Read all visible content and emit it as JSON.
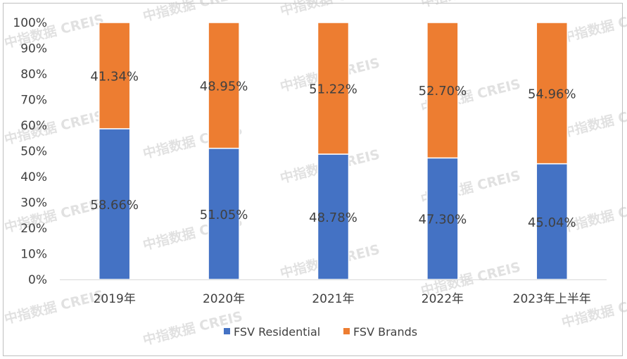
{
  "chart_data": {
    "type": "bar",
    "stacked": true,
    "categories": [
      "2019年",
      "2020年",
      "2021年",
      "2022年",
      "2023年上半年"
    ],
    "series": [
      {
        "name": "FSV Residential",
        "color": "#4472C4",
        "values": [
          58.66,
          51.05,
          48.78,
          47.3,
          45.04
        ],
        "labels": [
          "58.66%",
          "51.05%",
          "48.78%",
          "47.30%",
          "45.04%"
        ]
      },
      {
        "name": "FSV Brands",
        "color": "#ED7D31",
        "values": [
          41.34,
          48.95,
          51.22,
          52.7,
          54.96
        ],
        "labels": [
          "41.34%",
          "48.95%",
          "51.22%",
          "52.70%",
          "54.96%"
        ]
      }
    ],
    "yticks": [
      "0%",
      "10%",
      "20%",
      "30%",
      "40%",
      "50%",
      "60%",
      "70%",
      "80%",
      "90%",
      "100%"
    ],
    "ylim": [
      0,
      100
    ],
    "grid": false,
    "legend": "bottom",
    "watermark": "中指数据 CREIS"
  }
}
